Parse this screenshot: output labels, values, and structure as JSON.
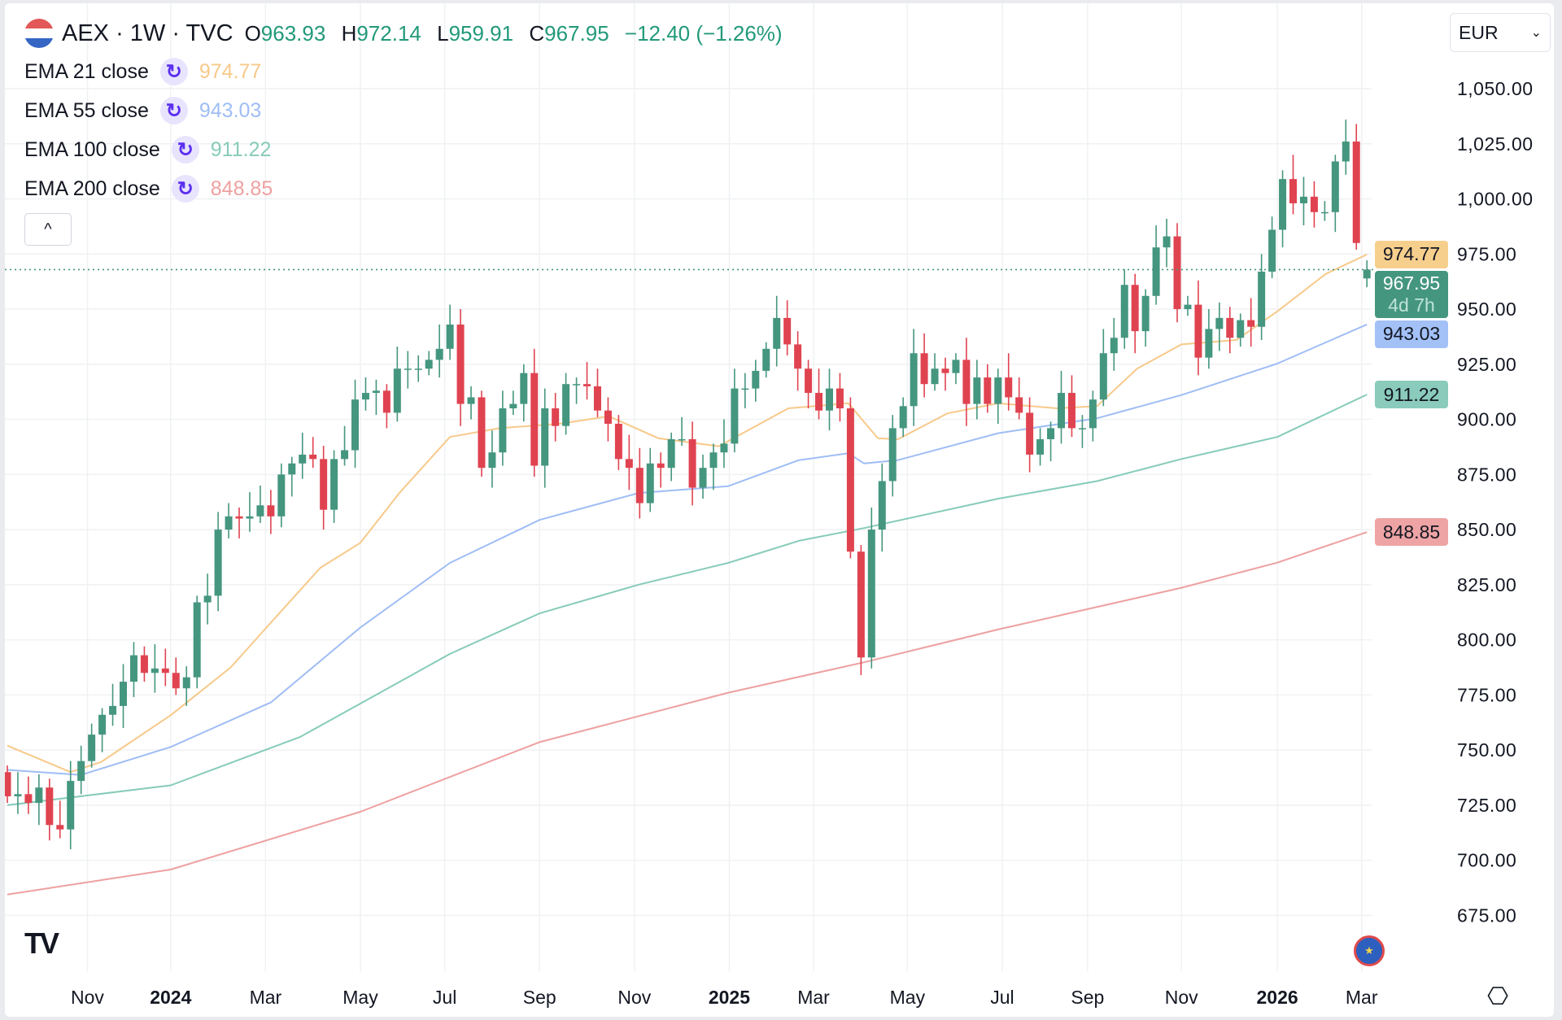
{
  "header": {
    "symbol": "AEX · 1W · TVC",
    "open_label": "O",
    "open": "963.93",
    "high_label": "H",
    "high": "972.14",
    "low_label": "L",
    "low": "959.91",
    "close_label": "C",
    "close": "967.95",
    "change": "−12.40 (−1.26%)"
  },
  "indicators": [
    {
      "label": "EMA 21 close",
      "value": "974.77",
      "color": "#f7c98a",
      "badge": "#f7cf8d"
    },
    {
      "label": "EMA 55 close",
      "value": "943.03",
      "color": "#9fbdf5",
      "badge": "#a3c1f7"
    },
    {
      "label": "EMA 100 close",
      "value": "911.22",
      "color": "#86cbb9",
      "badge": "#8acbbb"
    },
    {
      "label": "EMA 200 close",
      "value": "848.85",
      "color": "#eea0a0",
      "badge": "#eea4a4"
    }
  ],
  "collapse_icon": "^",
  "currency": {
    "value": "EUR",
    "icon": "chevron-down-icon"
  },
  "current_price": {
    "value": "967.95",
    "countdown": "4d 7h"
  },
  "colors": {
    "up": "#45967f",
    "down": "#e04350",
    "grid": "#f0f1f3"
  },
  "chart_data": {
    "type": "candlestick",
    "title": "AEX · 1W · TVC",
    "y_ticks": [
      "1,050.00",
      "1,025.00",
      "1,000.00",
      "975.00",
      "950.00",
      "925.00",
      "900.00",
      "875.00",
      "850.00",
      "825.00",
      "800.00",
      "775.00",
      "750.00",
      "725.00",
      "700.00",
      "675.00"
    ],
    "ylim": [
      675,
      1050
    ],
    "x_ticks": [
      {
        "label": "Nov",
        "week": 7.6,
        "bold": false
      },
      {
        "label": "2024",
        "week": 15.5,
        "bold": true
      },
      {
        "label": "Mar",
        "week": 24.5,
        "bold": false
      },
      {
        "label": "May",
        "week": 33.5,
        "bold": false
      },
      {
        "label": "Jul",
        "week": 41.5,
        "bold": false
      },
      {
        "label": "Sep",
        "week": 50.5,
        "bold": false
      },
      {
        "label": "Nov",
        "week": 59.5,
        "bold": false
      },
      {
        "label": "2025",
        "week": 68.5,
        "bold": true
      },
      {
        "label": "Mar",
        "week": 76.5,
        "bold": false
      },
      {
        "label": "May",
        "week": 85.4,
        "bold": false
      },
      {
        "label": "Jul",
        "week": 94.4,
        "bold": false
      },
      {
        "label": "Sep",
        "week": 102.5,
        "bold": false
      },
      {
        "label": "Nov",
        "week": 111.4,
        "bold": false
      },
      {
        "label": "2026",
        "week": 120.5,
        "bold": true
      },
      {
        "label": "Mar",
        "week": 128.5,
        "bold": false
      }
    ],
    "first_open": 740,
    "closes": [
      729,
      730,
      726,
      733,
      716,
      714,
      736,
      745,
      757,
      766,
      770,
      781,
      793,
      785,
      787,
      785,
      778,
      783,
      817,
      820,
      850,
      856,
      855,
      856,
      861,
      856,
      875,
      880,
      884,
      882,
      859,
      882,
      886,
      909,
      912,
      913,
      903,
      923,
      923,
      923,
      927,
      932,
      943,
      907,
      910,
      878,
      885,
      905,
      907,
      921,
      879,
      905,
      897,
      916,
      916,
      915,
      904,
      898,
      882,
      878,
      862,
      880,
      878,
      891,
      891,
      869,
      878,
      885,
      889,
      914,
      914,
      922,
      932,
      946,
      934,
      923,
      912,
      904,
      914,
      905,
      840,
      792,
      850,
      872,
      896,
      906,
      930,
      916,
      923,
      921,
      927,
      907,
      919,
      907,
      919,
      910,
      903,
      884,
      891,
      896,
      912,
      896,
      896,
      909,
      930,
      937,
      961,
      940,
      956,
      978,
      983,
      950,
      952,
      928,
      941,
      946,
      937,
      945,
      942,
      967,
      986,
      1009,
      998,
      1001,
      994,
      994,
      1017,
      1026,
      980,
      967.95
    ],
    "last_candle": {
      "o": 963.93,
      "h": 972.14,
      "l": 959.91,
      "c": 967.95
    },
    "series": [
      {
        "name": "EMA 21 close",
        "points": [
          [
            0,
            752
          ],
          [
            6,
            740
          ],
          [
            8.9,
            744.6
          ],
          [
            15.5,
            765.8
          ],
          [
            21.2,
            787.5
          ],
          [
            25,
            807.8
          ],
          [
            29.7,
            832.7
          ],
          [
            33.5,
            844
          ],
          [
            37.2,
            866.6
          ],
          [
            42,
            892
          ],
          [
            46.7,
            896
          ],
          [
            52.4,
            898
          ],
          [
            57.1,
            901.4
          ],
          [
            61.8,
            891.4
          ],
          [
            67.5,
            887.8
          ],
          [
            74.1,
            905
          ],
          [
            79.8,
            907.3
          ],
          [
            82.6,
            891.4
          ],
          [
            84.5,
            891
          ],
          [
            89.2,
            902.7
          ],
          [
            94,
            907.3
          ],
          [
            99.6,
            905
          ],
          [
            103.4,
            906
          ],
          [
            107.2,
            923
          ],
          [
            111.4,
            934
          ],
          [
            116.6,
            936
          ],
          [
            120.5,
            949
          ],
          [
            125.1,
            966
          ],
          [
            129,
            974.77
          ]
        ]
      },
      {
        "name": "EMA 55 close",
        "points": [
          [
            0,
            741
          ],
          [
            7,
            738.7
          ],
          [
            15.5,
            751.4
          ],
          [
            25,
            771.6
          ],
          [
            33.5,
            805.6
          ],
          [
            42,
            834.9
          ],
          [
            50.5,
            854.4
          ],
          [
            59.9,
            866.6
          ],
          [
            68.4,
            869.7
          ],
          [
            75.1,
            881.5
          ],
          [
            79.8,
            884.6
          ],
          [
            81.3,
            880
          ],
          [
            84.5,
            881.5
          ],
          [
            94,
            893.7
          ],
          [
            103.4,
            900.5
          ],
          [
            111.4,
            911
          ],
          [
            120.5,
            925.3
          ],
          [
            129,
            943.03
          ]
        ]
      },
      {
        "name": "EMA 100 close",
        "points": [
          [
            0,
            725
          ],
          [
            15.5,
            734
          ],
          [
            27.8,
            756
          ],
          [
            42,
            793.6
          ],
          [
            50.5,
            812
          ],
          [
            59.9,
            825
          ],
          [
            68.4,
            834.9
          ],
          [
            75.1,
            844.9
          ],
          [
            81.3,
            850.7
          ],
          [
            94,
            864
          ],
          [
            103.4,
            872
          ],
          [
            111.4,
            882
          ],
          [
            120.5,
            892
          ],
          [
            129,
            911.22
          ]
        ]
      },
      {
        "name": "EMA 200 close",
        "points": [
          [
            0,
            684.5
          ],
          [
            15.5,
            695.8
          ],
          [
            33.5,
            722
          ],
          [
            50.5,
            753.6
          ],
          [
            68.4,
            776
          ],
          [
            81.3,
            789.8
          ],
          [
            94,
            804.7
          ],
          [
            111.4,
            823.6
          ],
          [
            120.5,
            835
          ],
          [
            129,
            848.85
          ]
        ]
      }
    ]
  }
}
